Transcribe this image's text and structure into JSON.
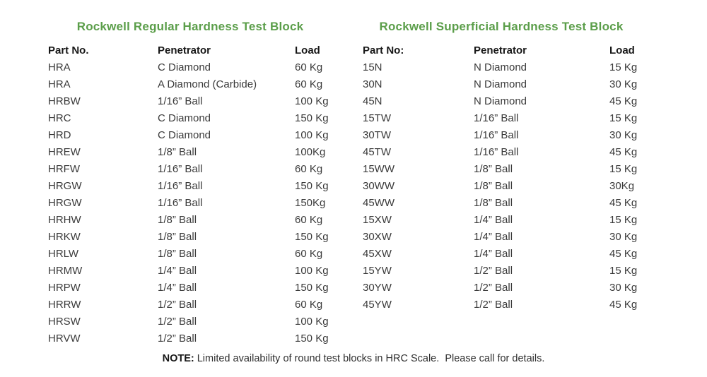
{
  "colors": {
    "title_green": "#5b9e4a",
    "header_text": "#171717",
    "body_text": "#3a3a3a",
    "background": "#ffffff"
  },
  "regular_table": {
    "title": "Rockwell Regular Hardness Test Block",
    "headers": [
      "Part No.",
      "Penetrator",
      "Load"
    ],
    "rows": [
      {
        "part": "HRA",
        "penetrator": "C Diamond",
        "load": "60 Kg"
      },
      {
        "part": "HRA",
        "penetrator": "A Diamond (Carbide)",
        "load": "60 Kg"
      },
      {
        "part": "HRBW",
        "penetrator": "1/16” Ball",
        "load": "100 Kg"
      },
      {
        "part": "HRC",
        "penetrator": "C Diamond",
        "load": "150 Kg"
      },
      {
        "part": "HRD",
        "penetrator": "C Diamond",
        "load": "100 Kg"
      },
      {
        "part": "HREW",
        "penetrator": "1/8” Ball",
        "load": "100Kg"
      },
      {
        "part": "HRFW",
        "penetrator": "1/16” Ball",
        "load": "60 Kg"
      },
      {
        "part": "HRGW",
        "penetrator": "1/16” Ball",
        "load": "150 Kg"
      },
      {
        "part": "HRGW",
        "penetrator": "1/16” Ball",
        "load": "150Kg"
      },
      {
        "part": "HRHW",
        "penetrator": "1/8” Ball",
        "load": "60 Kg"
      },
      {
        "part": "HRKW",
        "penetrator": "1/8” Ball",
        "load": "150 Kg"
      },
      {
        "part": "HRLW",
        "penetrator": "1/8” Ball",
        "load": "60 Kg"
      },
      {
        "part": "HRMW",
        "penetrator": "1/4” Ball",
        "load": "100 Kg"
      },
      {
        "part": "HRPW",
        "penetrator": "1/4” Ball",
        "load": "150 Kg"
      },
      {
        "part": "HRRW",
        "penetrator": "1/2” Ball",
        "load": "60 Kg"
      },
      {
        "part": "HRSW",
        "penetrator": "1/2” Ball",
        "load": "100 Kg"
      },
      {
        "part": "HRVW",
        "penetrator": "1/2” Ball",
        "load": "150 Kg"
      }
    ]
  },
  "superficial_table": {
    "title": "Rockwell Superficial Hardness Test Block",
    "headers": [
      "Part No:",
      "Penetrator",
      "Load"
    ],
    "rows": [
      {
        "part": "15N",
        "penetrator": "N Diamond",
        "load": "15 Kg"
      },
      {
        "part": "30N",
        "penetrator": "N Diamond",
        "load": "30 Kg"
      },
      {
        "part": "45N",
        "penetrator": "N Diamond",
        "load": "45 Kg"
      },
      {
        "part": "15TW",
        "penetrator": "1/16” Ball",
        "load": "15 Kg"
      },
      {
        "part": "30TW",
        "penetrator": "1/16” Ball",
        "load": "30 Kg"
      },
      {
        "part": "45TW",
        "penetrator": "1/16” Ball",
        "load": "45 Kg"
      },
      {
        "part": "15WW",
        "penetrator": "1/8” Ball",
        "load": "15 Kg"
      },
      {
        "part": "30WW",
        "penetrator": "1/8” Ball",
        "load": "30Kg"
      },
      {
        "part": "45WW",
        "penetrator": "1/8” Ball",
        "load": "45 Kg"
      },
      {
        "part": "15XW",
        "penetrator": "1/4” Ball",
        "load": "15 Kg"
      },
      {
        "part": "30XW",
        "penetrator": "1/4” Ball",
        "load": "30 Kg"
      },
      {
        "part": "45XW",
        "penetrator": "1/4” Ball",
        "load": "45 Kg"
      },
      {
        "part": "15YW",
        "penetrator": "1/2” Ball",
        "load": "15 Kg"
      },
      {
        "part": "30YW",
        "penetrator": "1/2” Ball",
        "load": "30 Kg"
      },
      {
        "part": "45YW",
        "penetrator": "1/2” Ball",
        "load": "45 Kg"
      }
    ]
  },
  "note": {
    "label": "NOTE:",
    "text": " Limited availability of round test blocks in HRC Scale.  Please call for details."
  }
}
